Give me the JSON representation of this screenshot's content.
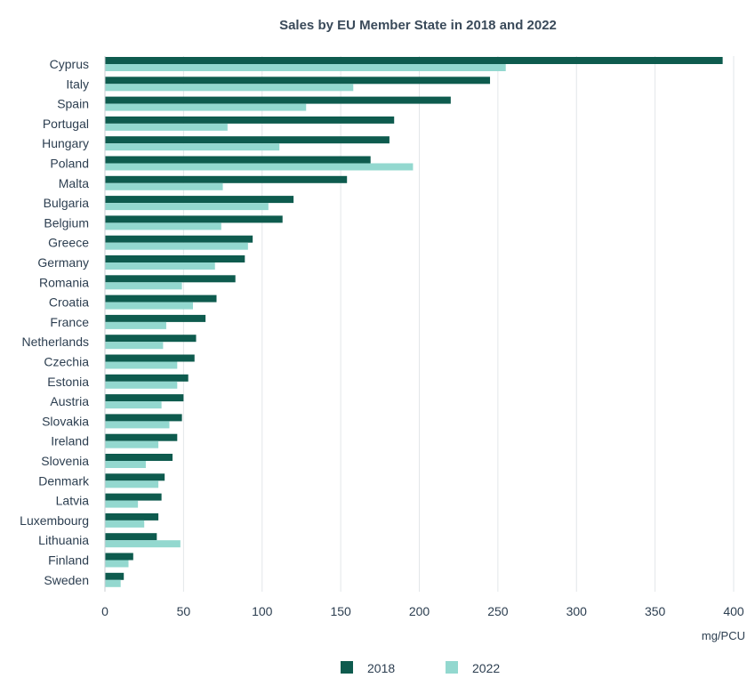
{
  "chart_data": {
    "type": "bar",
    "orientation": "horizontal",
    "title": "Sales by EU Member State in 2018 and 2022",
    "xlabel": "mg/PCU",
    "ylabel": "",
    "xlim": [
      0,
      400
    ],
    "xticks": [
      "0",
      "50",
      "100",
      "150",
      "200",
      "250",
      "300",
      "350",
      "400"
    ],
    "grid": "vertical",
    "legend_position": "bottom",
    "categories": [
      "Cyprus",
      "Italy",
      "Spain",
      "Portugal",
      "Hungary",
      "Poland",
      "Malta",
      "Bulgaria",
      "Belgium",
      "Greece",
      "Germany",
      "Romania",
      "Croatia",
      "France",
      "Netherlands",
      "Czechia",
      "Estonia",
      "Austria",
      "Slovakia",
      "Ireland",
      "Slovenia",
      "Denmark",
      "Latvia",
      "Luxembourg",
      "Lithuania",
      "Finland",
      "Sweden"
    ],
    "series": [
      {
        "name": "2018",
        "color": "#0e5b4e",
        "values": [
          393,
          245,
          220,
          184,
          181,
          169,
          154,
          120,
          113,
          94,
          89,
          83,
          71,
          64,
          58,
          57,
          53,
          50,
          49,
          46,
          43,
          38,
          36,
          34,
          33,
          18,
          12
        ]
      },
      {
        "name": "2022",
        "color": "#93d8cf",
        "values": [
          255,
          158,
          128,
          78,
          111,
          196,
          75,
          104,
          74,
          91,
          70,
          49,
          56,
          39,
          37,
          46,
          46,
          36,
          41,
          34,
          26,
          34,
          21,
          25,
          48,
          15,
          10
        ]
      }
    ]
  }
}
